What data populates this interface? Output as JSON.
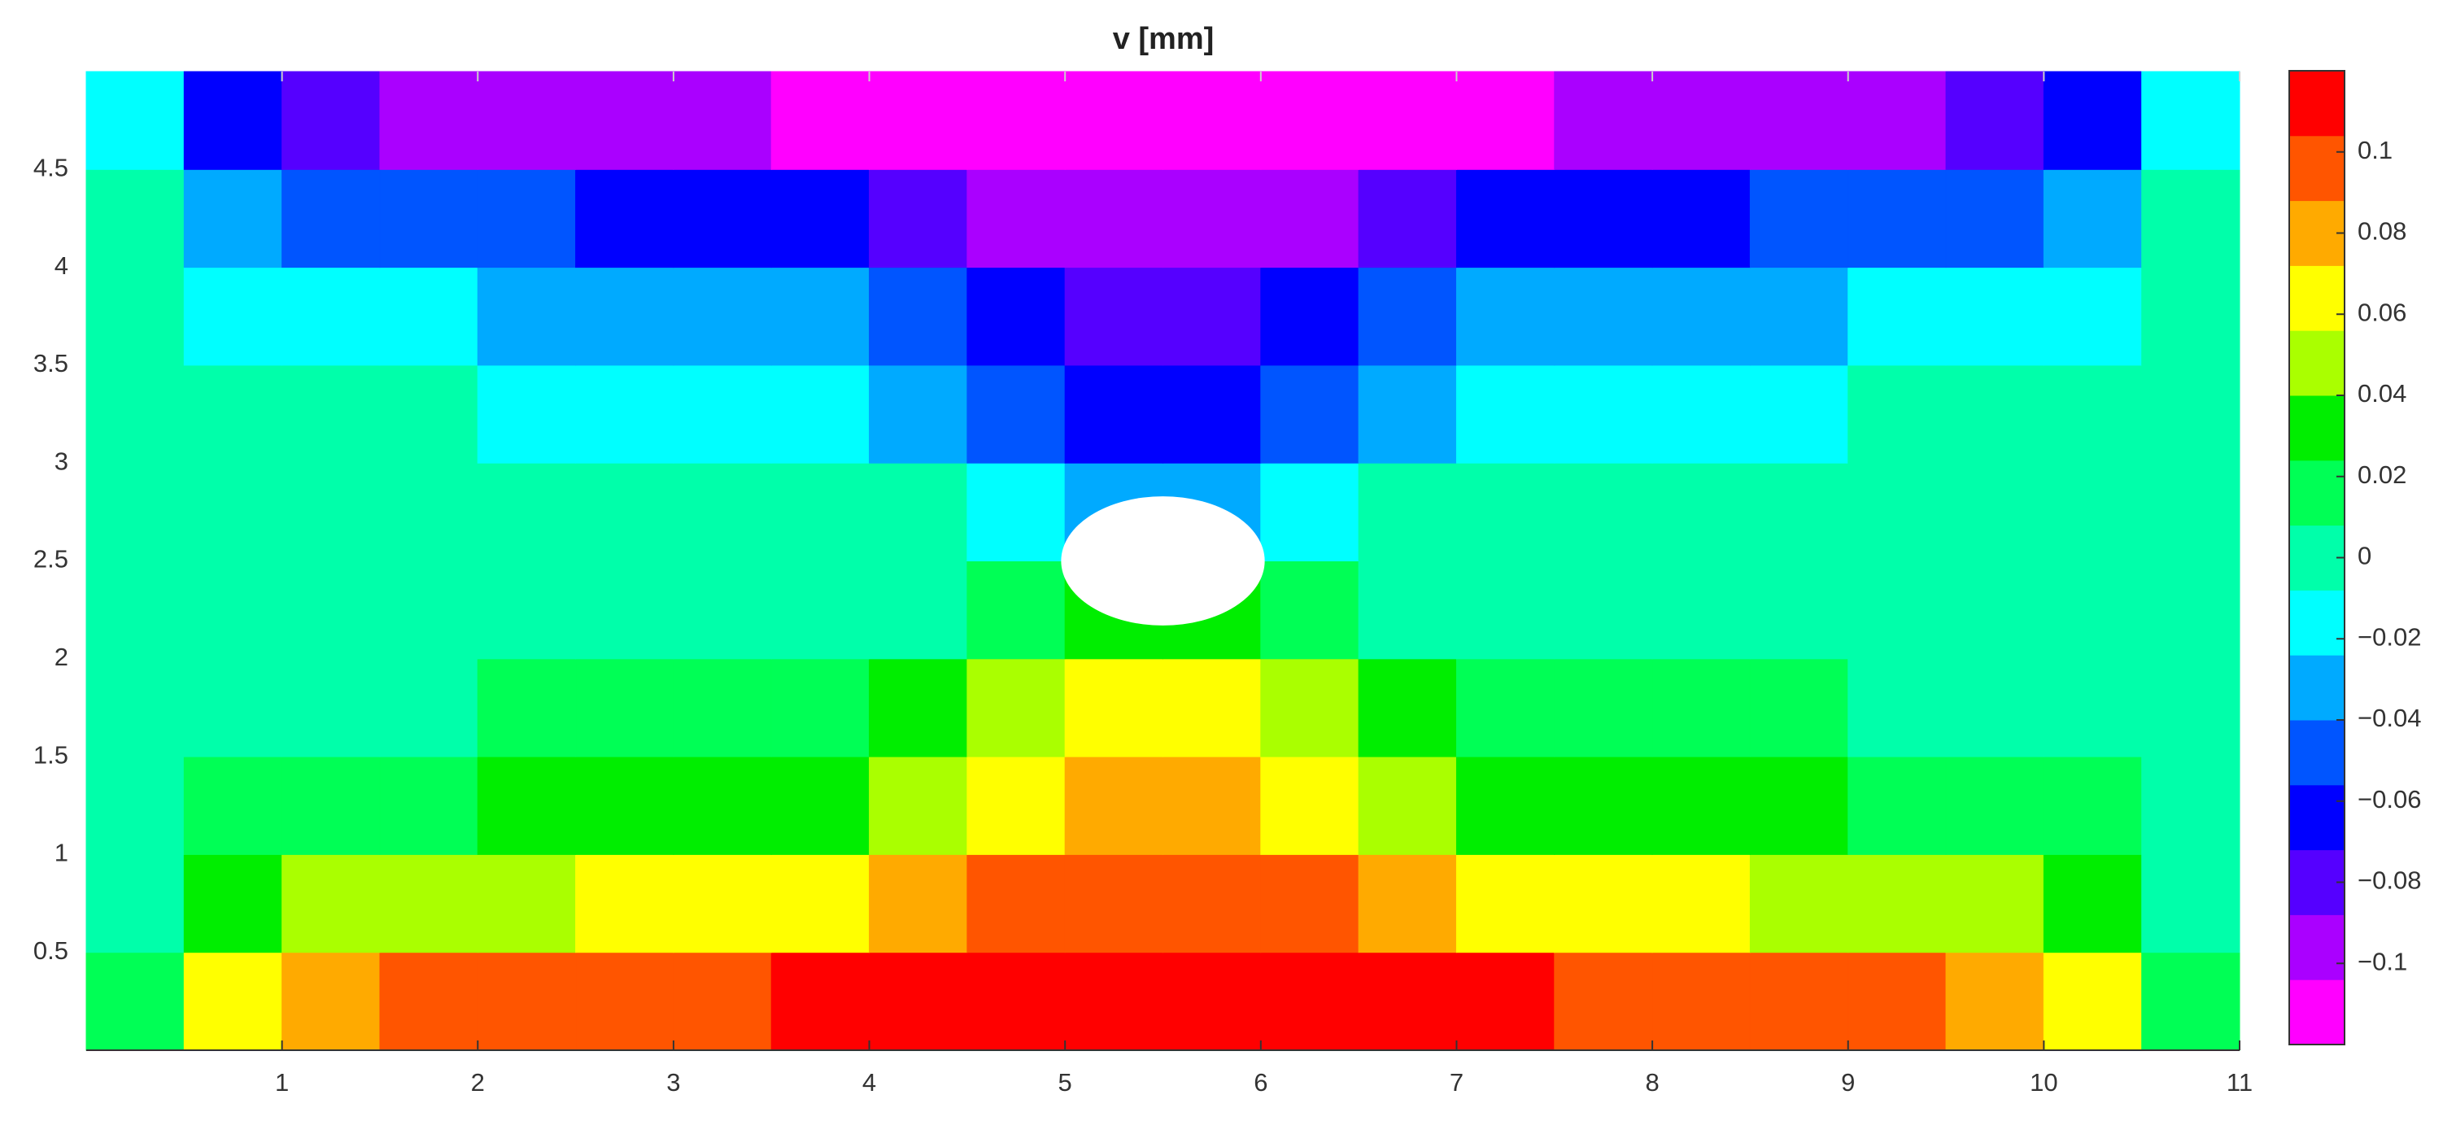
{
  "chart_data": {
    "type": "contour",
    "title": "v [mm]",
    "x": [
      0.25,
      0.75,
      1.25,
      1.75,
      2.25,
      2.75,
      3.25,
      3.75,
      4.25,
      4.75,
      5.25,
      5.75,
      6.25,
      6.75,
      7.25,
      7.75,
      8.25,
      8.75,
      9.25,
      9.75,
      10.25,
      10.75
    ],
    "y": [
      0.25,
      0.75,
      1.25,
      1.75,
      2.25,
      2.75,
      3.25,
      3.75,
      4.25,
      4.75
    ],
    "z": [
      [
        0.01,
        0.06,
        0.08,
        0.09,
        0.095,
        0.1,
        0.103,
        0.107,
        0.11,
        0.113,
        0.115,
        0.115,
        0.113,
        0.11,
        0.107,
        0.103,
        0.1,
        0.095,
        0.09,
        0.08,
        0.06,
        0.01
      ],
      [
        0.005,
        0.032,
        0.043,
        0.049,
        0.053,
        0.058,
        0.062,
        0.07,
        0.079,
        0.09,
        0.099,
        0.099,
        0.09,
        0.079,
        0.07,
        0.062,
        0.058,
        0.053,
        0.049,
        0.043,
        0.032,
        0.005
      ],
      [
        0.002,
        0.014,
        0.018,
        0.022,
        0.025,
        0.028,
        0.032,
        0.039,
        0.051,
        0.067,
        0.081,
        0.081,
        0.067,
        0.051,
        0.039,
        0.032,
        0.028,
        0.025,
        0.022,
        0.018,
        0.014,
        0.002
      ],
      [
        0.001,
        0.004,
        0.005,
        0.006,
        0.008,
        0.009,
        0.011,
        0.016,
        0.026,
        0.042,
        0.059,
        0.059,
        0.042,
        0.026,
        0.016,
        0.011,
        0.009,
        0.008,
        0.006,
        0.005,
        0.004,
        0.001
      ],
      [
        0,
        0,
        0,
        0,
        0.001,
        0.001,
        0.001,
        0.003,
        0.006,
        0.016,
        0.031,
        0.031,
        0.016,
        0.006,
        0.003,
        0.001,
        0.001,
        0.001,
        0,
        0,
        0,
        0
      ],
      [
        0,
        0,
        0,
        0,
        -0.001,
        -0.001,
        -0.001,
        -0.003,
        -0.006,
        -0.016,
        -0.031,
        -0.031,
        -0.016,
        -0.006,
        -0.003,
        -0.001,
        -0.001,
        -0.001,
        0,
        0,
        0,
        0
      ],
      [
        -0.001,
        -0.004,
        -0.005,
        -0.006,
        -0.008,
        -0.009,
        -0.011,
        -0.016,
        -0.026,
        -0.042,
        -0.059,
        -0.059,
        -0.042,
        -0.026,
        -0.016,
        -0.011,
        -0.009,
        -0.008,
        -0.006,
        -0.005,
        -0.004,
        -0.001
      ],
      [
        -0.002,
        -0.014,
        -0.018,
        -0.022,
        -0.025,
        -0.028,
        -0.032,
        -0.039,
        -0.051,
        -0.067,
        -0.081,
        -0.081,
        -0.067,
        -0.051,
        -0.039,
        -0.032,
        -0.028,
        -0.025,
        -0.022,
        -0.018,
        -0.014,
        -0.002
      ],
      [
        -0.005,
        -0.032,
        -0.043,
        -0.049,
        -0.053,
        -0.058,
        -0.062,
        -0.07,
        -0.079,
        -0.09,
        -0.099,
        -0.099,
        -0.09,
        -0.079,
        -0.07,
        -0.062,
        -0.058,
        -0.053,
        -0.049,
        -0.043,
        -0.032,
        -0.005
      ],
      [
        -0.01,
        -0.06,
        -0.08,
        -0.09,
        -0.095,
        -0.1,
        -0.103,
        -0.107,
        -0.11,
        -0.113,
        -0.115,
        -0.115,
        -0.113,
        -0.11,
        -0.107,
        -0.103,
        -0.1,
        -0.095,
        -0.09,
        -0.08,
        -0.06,
        -0.01
      ]
    ],
    "xlim": [
      0,
      11
    ],
    "ylim": [
      0,
      5
    ],
    "xticks": [
      1,
      2,
      3,
      4,
      5,
      6,
      7,
      8,
      9,
      10,
      11
    ],
    "yticks": [
      0.5,
      1,
      1.5,
      2,
      2.5,
      3,
      3.5,
      4,
      4.5
    ],
    "clim": [
      -0.12,
      0.12
    ],
    "cticks": [
      {
        "value": -0.1,
        "label": "−0.1"
      },
      {
        "value": -0.08,
        "label": "−0.08"
      },
      {
        "value": -0.06,
        "label": "−0.06"
      },
      {
        "value": -0.04,
        "label": "−0.04"
      },
      {
        "value": -0.02,
        "label": "−0.02"
      },
      0,
      0.02,
      0.04,
      0.06,
      0.08,
      0.1
    ],
    "colormap": [
      "#ff00ff",
      "#aa00ff",
      "#5500ff",
      "#0000ff",
      "#0055ff",
      "#00aaff",
      "#00ffff",
      "#00ffaa",
      "#00ff55",
      "#00ee00",
      "#aaff00",
      "#ffff00",
      "#ffaa00",
      "#ff5500",
      "#ff0000"
    ],
    "hole": {
      "cx": 5.5,
      "cy": 2.5,
      "rx": 0.52,
      "ry": 0.33
    }
  }
}
